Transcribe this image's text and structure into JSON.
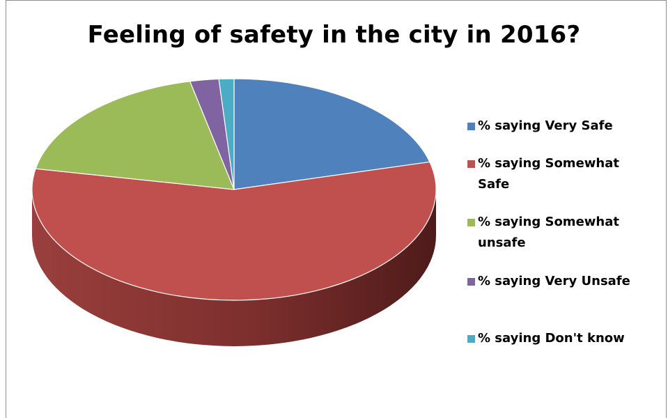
{
  "chart_data": {
    "type": "pie",
    "title": "Feeling of safety in the city in 2016?",
    "categories": [
      "% saying Very Safe",
      "% saying Somewhat Safe",
      "% saying Somewhat unsafe",
      "% saying Very Unsafe",
      "% saying Don't know"
    ],
    "values": [
      21,
      57,
      18.5,
      2.3,
      1.2
    ],
    "colors": [
      "#4f81bd",
      "#c0504d",
      "#9bbb59",
      "#8064a2",
      "#4bacc6"
    ],
    "legend": "right",
    "style": "3d-pie"
  }
}
